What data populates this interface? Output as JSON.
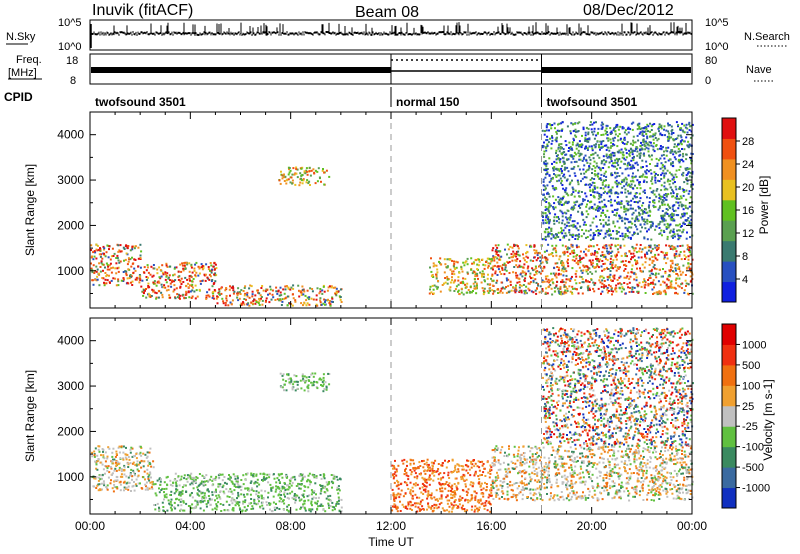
{
  "header": {
    "station": "Inuvik (fitACF)",
    "beam": "Beam 08",
    "date": "08/Dec/2012"
  },
  "noise_panel": {
    "left_label": "N.Sky",
    "right_label": "N.Search",
    "y_ticks": [
      "10^5",
      "10^0"
    ]
  },
  "freq_panel": {
    "left_label_line1": "Freq.",
    "left_label_line2": "[MHz]",
    "right_label": "Nave",
    "left_ticks": [
      "18",
      "8"
    ],
    "right_ticks": [
      "80",
      "0"
    ]
  },
  "cpid": {
    "label": "CPID",
    "segments": [
      {
        "name": "twofsound 3501",
        "start_hour": 0,
        "end_hour": 12
      },
      {
        "name": "normal 150",
        "start_hour": 12,
        "end_hour": 18
      },
      {
        "name": "twofsound 3501",
        "start_hour": 18,
        "end_hour": 24
      }
    ]
  },
  "x_axis": {
    "label": "Time UT",
    "ticks": [
      "00:00",
      "04:00",
      "08:00",
      "12:00",
      "16:00",
      "20:00",
      "00:00"
    ]
  },
  "chart_data": [
    {
      "type": "heatmap",
      "quantity": "power",
      "ylabel": "Slant Range [km]",
      "xlim_hours": [
        0,
        24
      ],
      "ylim_km": [
        180,
        4500
      ],
      "y_ticks": [
        1000,
        2000,
        3000,
        4000
      ],
      "colorbar": {
        "label": "Power [dB]",
        "tick_labels": [
          "4",
          "8",
          "12",
          "16",
          "20",
          "24",
          "28"
        ],
        "colors": [
          "#1020e0",
          "#2850c0",
          "#3a7a70",
          "#5aa050",
          "#60c020",
          "#e8c020",
          "#f09020",
          "#f05010",
          "#e01010"
        ]
      },
      "regions": [
        {
          "hours": [
            0,
            2
          ],
          "range_km": [
            700,
            1600
          ],
          "level": "high"
        },
        {
          "hours": [
            2,
            5
          ],
          "range_km": [
            400,
            1200
          ],
          "level": "high"
        },
        {
          "hours": [
            5,
            10
          ],
          "range_km": [
            250,
            700
          ],
          "level": "high"
        },
        {
          "hours": [
            7.5,
            9.5
          ],
          "range_km": [
            2900,
            3300
          ],
          "level": "medium"
        },
        {
          "hours": [
            13.5,
            16
          ],
          "range_km": [
            500,
            1300
          ],
          "level": "medium"
        },
        {
          "hours": [
            16,
            24
          ],
          "range_km": [
            500,
            1600
          ],
          "level": "high"
        },
        {
          "hours": [
            18,
            24
          ],
          "range_km": [
            1700,
            4300
          ],
          "level": "low"
        }
      ]
    },
    {
      "type": "heatmap",
      "quantity": "velocity",
      "ylabel": "Slant Range [km]",
      "xlim_hours": [
        0,
        24
      ],
      "ylim_km": [
        180,
        4500
      ],
      "y_ticks": [
        1000,
        2000,
        3000,
        4000
      ],
      "colorbar": {
        "label": "Velocity [m s-1]",
        "tick_labels": [
          "1000",
          "500",
          "100",
          "25",
          "-25",
          "-100",
          "-500",
          "-1000"
        ],
        "colors": [
          "#1030c0",
          "#3a6aa0",
          "#3a8a60",
          "#60c040",
          "#c0c0c0",
          "#f0a030",
          "#f07010",
          "#f03010",
          "#e00000"
        ]
      },
      "regions": [
        {
          "hours": [
            0,
            2.5
          ],
          "range_km": [
            700,
            1700
          ],
          "level": "mixed"
        },
        {
          "hours": [
            2.5,
            10
          ],
          "range_km": [
            250,
            1100
          ],
          "level": "positive"
        },
        {
          "hours": [
            7.5,
            9.5
          ],
          "range_km": [
            2900,
            3300
          ],
          "level": "positive"
        },
        {
          "hours": [
            12,
            16
          ],
          "range_km": [
            250,
            1400
          ],
          "level": "negative"
        },
        {
          "hours": [
            16,
            24
          ],
          "range_km": [
            500,
            1700
          ],
          "level": "mixed"
        },
        {
          "hours": [
            18,
            24
          ],
          "range_km": [
            1700,
            4300
          ],
          "level": "scattered"
        }
      ]
    }
  ]
}
